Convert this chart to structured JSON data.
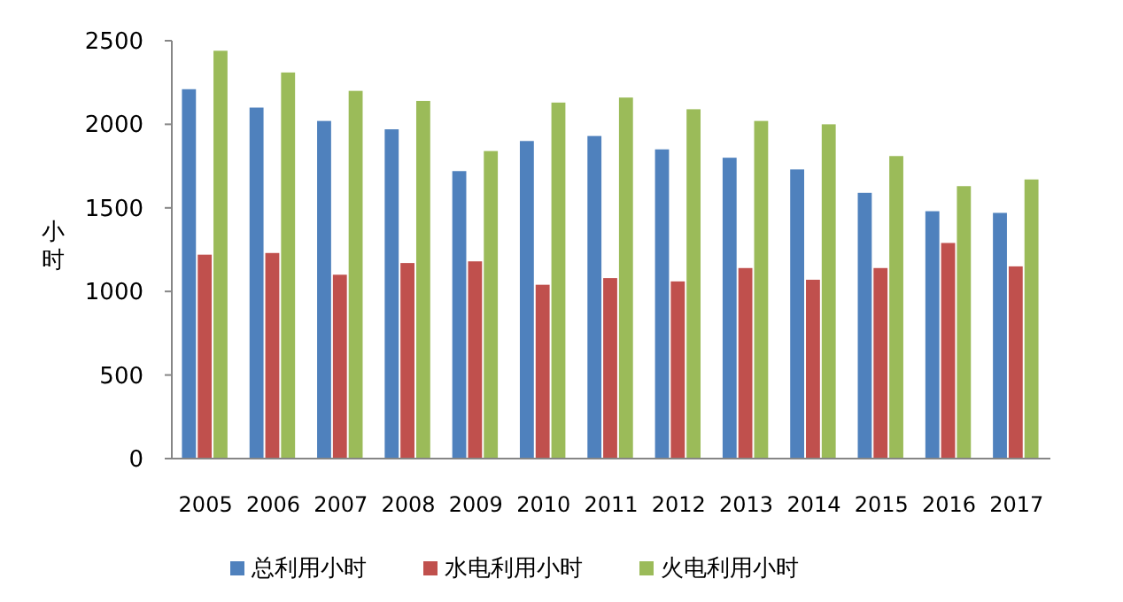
{
  "chart_data": {
    "type": "bar",
    "ylabel": "小时",
    "categories": [
      "2005",
      "2006",
      "2007",
      "2008",
      "2009",
      "2010",
      "2011",
      "2012",
      "2013",
      "2014",
      "2015",
      "2016",
      "2017"
    ],
    "series": [
      {
        "name": "总利用小时",
        "color": "#4f81bd",
        "values": [
          2210,
          2100,
          2020,
          1970,
          1720,
          1900,
          1930,
          1850,
          1800,
          1730,
          1590,
          1480,
          1470
        ]
      },
      {
        "name": "水电利用小时",
        "color": "#c0504d",
        "values": [
          1220,
          1230,
          1100,
          1170,
          1180,
          1040,
          1080,
          1060,
          1140,
          1070,
          1140,
          1290,
          1150
        ]
      },
      {
        "name": "火电利用小时",
        "color": "#9bbb59",
        "values": [
          2440,
          2310,
          2200,
          2140,
          1840,
          2130,
          2160,
          2090,
          2020,
          2000,
          1810,
          1630,
          1670
        ]
      }
    ],
    "ylim": [
      0,
      2500
    ],
    "yticks": [
      0,
      500,
      1000,
      1500,
      2000,
      2500
    ],
    "grid": false,
    "legend": "bottom"
  }
}
